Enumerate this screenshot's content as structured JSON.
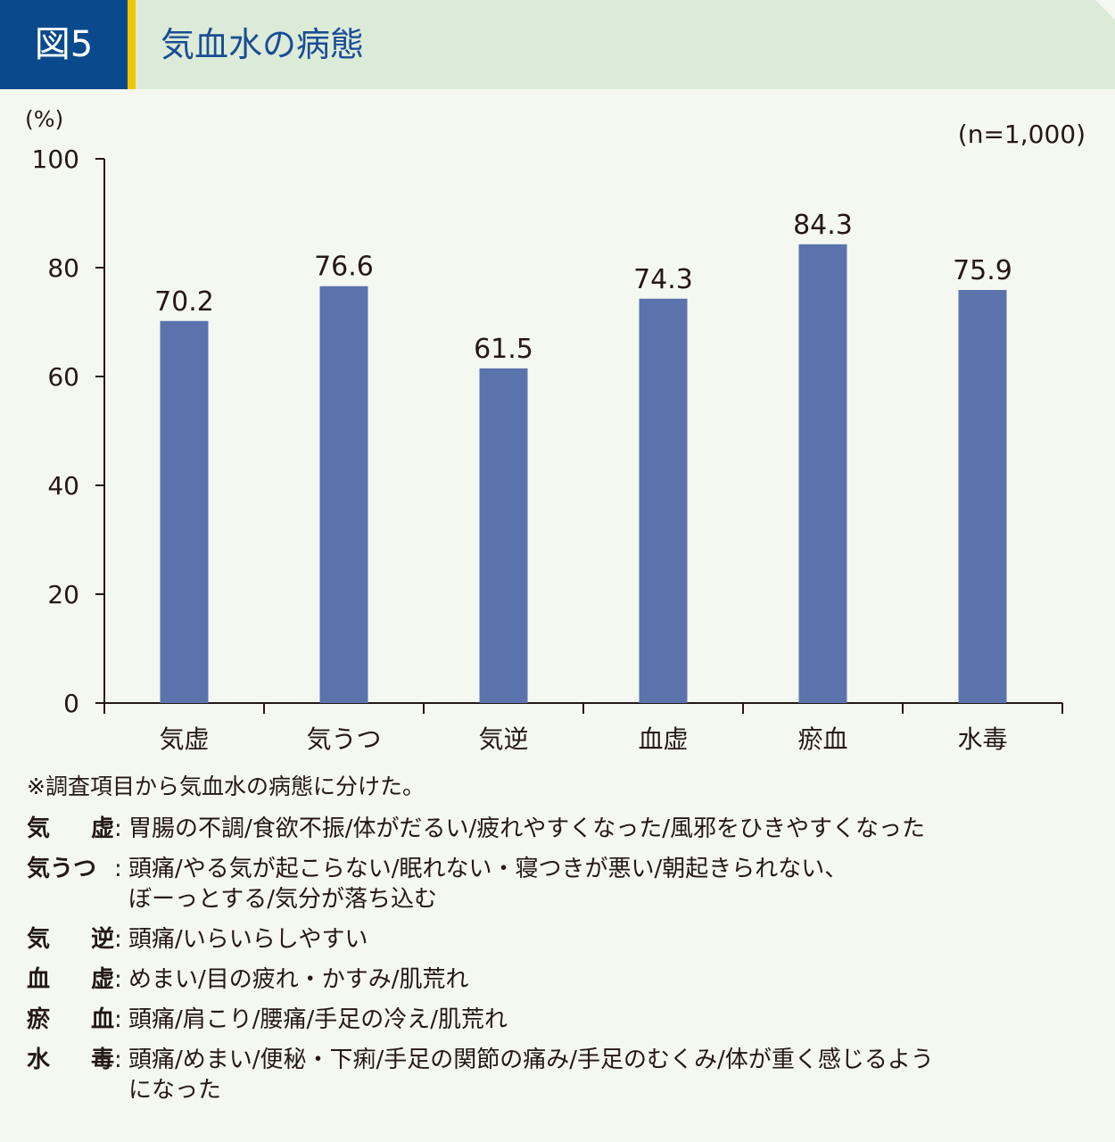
{
  "header": {
    "fig_label": "図5",
    "title": "気血水の病態",
    "colors": {
      "label_bg": "#0a4a8c",
      "accent": "#f2c500",
      "band": "#dcebd8",
      "title": "#1a4d96"
    }
  },
  "chart_data": {
    "type": "bar",
    "title": "",
    "ylabel": "(%)",
    "sample_note": "(n=1,000)",
    "categories": [
      "気虚",
      "気うつ",
      "気逆",
      "血虚",
      "瘀血",
      "水毒"
    ],
    "values": [
      70.2,
      76.6,
      61.5,
      74.3,
      84.3,
      75.9
    ],
    "value_labels": [
      "70.2",
      "76.6",
      "61.5",
      "74.3",
      "84.3",
      "75.9"
    ],
    "ylim": [
      0,
      100
    ],
    "yticks": [
      0,
      20,
      40,
      60,
      80,
      100
    ],
    "bar_color": "#5a73ad",
    "grid": false,
    "legend": "none"
  },
  "note": "※調査項目から気血水の病態に分けた。",
  "definitions": [
    {
      "term": [
        "気",
        "虚"
      ],
      "desc": "胃腸の不調/食欲不振/体がだるい/疲れやすくなった/風邪をひきやすくなった"
    },
    {
      "term": [
        "気うつ"
      ],
      "desc": "頭痛/やる気が起こらない/眠れない・寝つきが悪い/朝起きられない、\nぼーっとする/気分が落ち込む"
    },
    {
      "term": [
        "気",
        "逆"
      ],
      "desc": "頭痛/いらいらしやすい"
    },
    {
      "term": [
        "血",
        "虚"
      ],
      "desc": "めまい/目の疲れ・かすみ/肌荒れ"
    },
    {
      "term": [
        "瘀",
        "血"
      ],
      "desc": "頭痛/肩こり/腰痛/手足の冷え/肌荒れ"
    },
    {
      "term": [
        "水",
        "毒"
      ],
      "desc": "頭痛/めまい/便秘・下痢/手足の関節の痛み/手足のむくみ/体が重く感じるよう\nになった"
    }
  ],
  "colon": ":"
}
